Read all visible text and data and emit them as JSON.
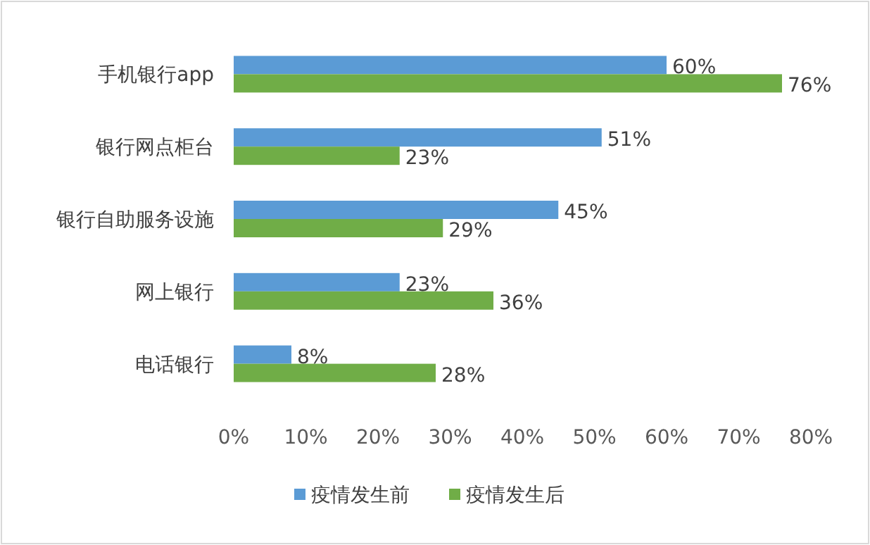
{
  "chart_data": {
    "type": "bar",
    "orientation": "horizontal",
    "categories": [
      "手机银行app",
      "银行网点柜台",
      "银行自助服务设施",
      "网上银行",
      "电话银行"
    ],
    "series": [
      {
        "name": "疫情发生前",
        "color": "#5b9bd5",
        "values": [
          60,
          51,
          45,
          23,
          8
        ],
        "value_labels": [
          "60%",
          "51%",
          "45%",
          "23%",
          "8%"
        ]
      },
      {
        "name": "疫情发生后",
        "color": "#70ad47",
        "values": [
          76,
          23,
          29,
          36,
          28
        ],
        "value_labels": [
          "76%",
          "23%",
          "29%",
          "36%",
          "28%"
        ]
      }
    ],
    "xlim": [
      0,
      80
    ],
    "xticks": [
      {
        "value": 0,
        "label": "0%"
      },
      {
        "value": 10,
        "label": "10%"
      },
      {
        "value": 20,
        "label": "20%"
      },
      {
        "value": 30,
        "label": "30%"
      },
      {
        "value": 40,
        "label": "40%"
      },
      {
        "value": 50,
        "label": "50%"
      },
      {
        "value": 60,
        "label": "60%"
      },
      {
        "value": 70,
        "label": "70%"
      },
      {
        "value": 80,
        "label": "80%"
      }
    ],
    "legend": "bottom"
  }
}
